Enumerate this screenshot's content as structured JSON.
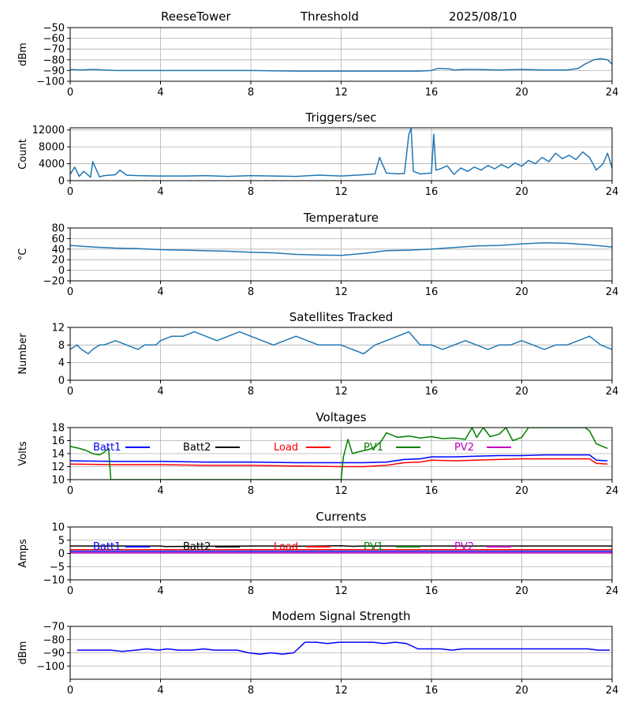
{
  "header": {
    "station": "ReeseTower",
    "label": "Threshold",
    "date": "2025/08/10"
  },
  "chart_data": [
    {
      "id": "threshold",
      "type": "line",
      "title": "",
      "xlabel": "",
      "ylabel": "dBm",
      "xlim": [
        0,
        24
      ],
      "ylim": [
        -100,
        -50
      ],
      "xticks": [
        0,
        4,
        8,
        12,
        16,
        20,
        24
      ],
      "yticks": [
        -100,
        -90,
        -80,
        -70,
        -60,
        -50
      ],
      "grid": true,
      "color": "#1f77b4",
      "x": [
        0,
        0.5,
        1,
        2,
        4,
        6,
        8,
        10,
        12,
        14,
        15.5,
        16,
        16.3,
        16.8,
        17,
        17.5,
        18,
        19,
        20,
        21,
        22,
        22.5,
        22.8,
        23,
        23.2,
        23.5,
        23.8,
        24
      ],
      "y": [
        -89,
        -89.5,
        -89,
        -90,
        -90,
        -90,
        -90,
        -90.5,
        -90.5,
        -90.5,
        -90.5,
        -90,
        -88,
        -88.5,
        -89.5,
        -89,
        -89,
        -89.5,
        -89,
        -89.5,
        -89.5,
        -88,
        -84,
        -82,
        -80,
        -79,
        -80,
        -84
      ]
    },
    {
      "id": "triggers",
      "type": "line",
      "title": "Triggers/sec",
      "xlabel": "",
      "ylabel": "Count",
      "xlim": [
        0,
        24
      ],
      "ylim": [
        0,
        12500
      ],
      "xticks": [
        0,
        4,
        8,
        12,
        16,
        20,
        24
      ],
      "yticks": [
        0,
        4000,
        8000,
        12000
      ],
      "grid": true,
      "color": "#1f77b4",
      "x": [
        0,
        0.2,
        0.4,
        0.6,
        0.9,
        1,
        1.3,
        1.5,
        2,
        2.2,
        2.5,
        3,
        4,
        5,
        6,
        7,
        8,
        9,
        10,
        11,
        12,
        13,
        13.5,
        13.7,
        14,
        14.5,
        14.8,
        15,
        15.1,
        15.2,
        15.5,
        16,
        16.1,
        16.2,
        16.4,
        16.7,
        17,
        17.3,
        17.6,
        17.9,
        18.2,
        18.5,
        18.8,
        19.1,
        19.4,
        19.7,
        20,
        20.3,
        20.6,
        20.9,
        21.2,
        21.5,
        21.8,
        22.1,
        22.4,
        22.7,
        23,
        23.3,
        23.6,
        23.8,
        24
      ],
      "y": [
        1500,
        3200,
        1000,
        2200,
        800,
        4500,
        900,
        1200,
        1400,
        2500,
        1300,
        1200,
        1100,
        1100,
        1200,
        1000,
        1200,
        1100,
        1000,
        1300,
        1100,
        1400,
        1600,
        5500,
        1800,
        1600,
        1700,
        11000,
        12400,
        2200,
        1600,
        1800,
        11000,
        2500,
        2800,
        3500,
        1500,
        3000,
        2200,
        3200,
        2500,
        3600,
        2800,
        3800,
        3000,
        4200,
        3400,
        4800,
        4000,
        5500,
        4500,
        6500,
        5200,
        6000,
        5000,
        6800,
        5500,
        2500,
        4000,
        6500,
        3000
      ]
    },
    {
      "id": "temperature",
      "type": "line",
      "title": "Temperature",
      "xlabel": "",
      "ylabel": "°C",
      "xlim": [
        0,
        24
      ],
      "ylim": [
        -20,
        80
      ],
      "xticks": [
        0,
        4,
        8,
        12,
        16,
        20,
        24
      ],
      "yticks": [
        -20,
        0,
        20,
        40,
        60,
        80
      ],
      "grid": true,
      "color": "#1f77b4",
      "x": [
        0,
        1,
        2,
        3,
        4,
        5,
        6,
        7,
        8,
        9,
        10,
        11,
        12,
        13,
        14,
        15,
        16,
        17,
        18,
        19,
        20,
        21,
        22,
        23,
        24
      ],
      "y": [
        47,
        44,
        42,
        41,
        39,
        38,
        37,
        36,
        34,
        33,
        30,
        29,
        28,
        32,
        37,
        38,
        40,
        43,
        46,
        47,
        50,
        52,
        51,
        48,
        44
      ]
    },
    {
      "id": "satellites",
      "type": "line",
      "title": "Satellites Tracked",
      "xlabel": "",
      "ylabel": "Number",
      "xlim": [
        0,
        24
      ],
      "ylim": [
        0,
        12
      ],
      "xticks": [
        0,
        4,
        8,
        12,
        16,
        20,
        24
      ],
      "yticks": [
        0,
        4,
        8,
        12
      ],
      "grid": true,
      "color": "#1f77b4",
      "x": [
        0,
        0.3,
        0.5,
        0.8,
        1,
        1.3,
        1.5,
        2,
        2.5,
        3,
        3.3,
        3.8,
        4,
        4.5,
        5,
        5.5,
        6,
        6.5,
        7,
        7.5,
        8,
        8.5,
        9,
        9.5,
        10,
        10.5,
        11,
        11.5,
        12,
        12.5,
        13,
        13.5,
        14,
        14.5,
        15,
        15.5,
        16,
        16.5,
        17,
        17.5,
        18,
        18.5,
        19,
        19.5,
        20,
        20.5,
        21,
        21.5,
        22,
        22.5,
        23,
        23.5,
        24
      ],
      "y": [
        7,
        8,
        7,
        6,
        7,
        8,
        8,
        9,
        8,
        7,
        8,
        8,
        9,
        10,
        10,
        11,
        10,
        9,
        10,
        11,
        10,
        9,
        8,
        9,
        10,
        9,
        8,
        8,
        8,
        7,
        6,
        8,
        9,
        10,
        11,
        8,
        8,
        7,
        8,
        9,
        8,
        7,
        8,
        8,
        9,
        8,
        7,
        8,
        8,
        9,
        10,
        8,
        7
      ]
    },
    {
      "id": "voltages",
      "type": "line",
      "title": "Voltages",
      "xlabel": "",
      "ylabel": "Volts",
      "xlim": [
        0,
        24
      ],
      "ylim": [
        10,
        18
      ],
      "xticks": [
        0,
        4,
        8,
        12,
        16,
        20,
        24
      ],
      "yticks": [
        10,
        12,
        14,
        16,
        18
      ],
      "grid": true,
      "legend": "top",
      "series": [
        {
          "name": "Batt1",
          "color": "#0000ff",
          "x": [
            0,
            2,
            4,
            6,
            8,
            10,
            12,
            13,
            14,
            14.8,
            15.5,
            16,
            17,
            18,
            19,
            20,
            21,
            22,
            23,
            23.3,
            23.8
          ],
          "y": [
            12.9,
            12.8,
            12.8,
            12.7,
            12.7,
            12.6,
            12.6,
            12.6,
            12.7,
            13.1,
            13.2,
            13.5,
            13.5,
            13.6,
            13.7,
            13.7,
            13.8,
            13.8,
            13.8,
            13.0,
            12.9
          ]
        },
        {
          "name": "Batt2",
          "color": "#000000",
          "x": [],
          "y": []
        },
        {
          "name": "Load",
          "color": "#ff0000",
          "x": [
            0,
            2,
            4,
            6,
            8,
            10,
            12,
            13,
            14,
            14.8,
            15.5,
            16,
            17,
            18,
            19,
            20,
            21,
            22,
            23,
            23.3,
            23.8
          ],
          "y": [
            12.4,
            12.3,
            12.3,
            12.2,
            12.2,
            12.1,
            12.0,
            12.0,
            12.2,
            12.6,
            12.7,
            13.0,
            12.9,
            13.0,
            13.1,
            13.2,
            13.2,
            13.2,
            13.2,
            12.5,
            12.4
          ]
        },
        {
          "name": "PV1",
          "color": "#008000",
          "x": [
            0,
            0.4,
            0.7,
            1,
            1.3,
            1.5,
            1.7,
            1.8,
            12,
            12.1,
            12.3,
            12.5,
            12.8,
            13.2,
            13.5,
            13.8,
            14,
            14.5,
            15,
            15.5,
            16,
            16.5,
            17,
            17.5,
            17.8,
            18,
            18.3,
            18.6,
            19,
            19.3,
            19.6,
            20,
            20.3,
            20.6,
            22.8,
            23,
            23.3,
            23.8
          ],
          "y": [
            15.1,
            14.8,
            14.5,
            14,
            13.8,
            14.2,
            14.8,
            10,
            10,
            13.5,
            16.2,
            14.0,
            14.3,
            14.6,
            15.0,
            16.0,
            17.2,
            16.5,
            16.7,
            16.4,
            16.6,
            16.3,
            16.4,
            16.2,
            18.0,
            16.5,
            18.0,
            16.6,
            17.0,
            18.0,
            16.0,
            16.5,
            18.0,
            18.0,
            18.0,
            17.5,
            15.5,
            14.8
          ]
        },
        {
          "name": "PV2",
          "color": "#bf00bf",
          "x": [],
          "y": []
        }
      ]
    },
    {
      "id": "currents",
      "type": "line",
      "title": "Currents",
      "xlabel": "",
      "ylabel": "Amps",
      "xlim": [
        0,
        24
      ],
      "ylim": [
        -10,
        10
      ],
      "xticks": [
        0,
        4,
        8,
        12,
        16,
        20,
        24
      ],
      "yticks": [
        -10,
        -5,
        0,
        5,
        10
      ],
      "grid": true,
      "legend": "top",
      "series": [
        {
          "name": "Batt1",
          "color": "#0000ff",
          "x": [
            0,
            24
          ],
          "y": [
            0.8,
            0.8
          ]
        },
        {
          "name": "Batt2",
          "color": "#000000",
          "x": [
            0,
            4,
            4.2,
            8,
            9,
            10,
            11,
            12,
            12.5,
            13,
            16,
            20,
            24
          ],
          "y": [
            2.8,
            2.8,
            2.6,
            2.8,
            2.8,
            2.7,
            2.8,
            2.9,
            2.7,
            2.8,
            2.8,
            2.8,
            2.8
          ]
        },
        {
          "name": "Load",
          "color": "#ff0000",
          "x": [
            0,
            24
          ],
          "y": [
            1.4,
            1.4
          ]
        },
        {
          "name": "PV1",
          "color": "#008000",
          "x": [],
          "y": []
        },
        {
          "name": "PV2",
          "color": "#bf00bf",
          "x": [
            0,
            24
          ],
          "y": [
            0.2,
            0.2
          ]
        }
      ]
    },
    {
      "id": "modem",
      "type": "line",
      "title": "Modem Signal Strength",
      "xlabel": "",
      "ylabel": "dBm",
      "xlim": [
        0,
        24
      ],
      "ylim": [
        -110,
        -70
      ],
      "xticks": [
        0,
        4,
        8,
        12,
        16,
        20,
        24
      ],
      "yticks": [
        -100,
        -90,
        -80,
        -70
      ],
      "grid": true,
      "color": "#0000ff",
      "x": [
        0.3,
        1.2,
        1.8,
        2.3,
        2.9,
        3.4,
        3.9,
        4.3,
        4.8,
        5.4,
        5.9,
        6.4,
        7.4,
        7.9,
        8.4,
        8.9,
        9.4,
        9.9,
        10.4,
        10.9,
        11.4,
        11.9,
        12.4,
        12.9,
        13.4,
        13.9,
        14.4,
        14.9,
        15.4,
        15.9,
        16.4,
        16.9,
        17.4,
        17.9,
        18.4,
        22.9,
        23.4,
        23.9
      ],
      "y": [
        -88,
        -88,
        -88,
        -89,
        -88,
        -87,
        -88,
        -87,
        -88,
        -88,
        -87,
        -88,
        -88,
        -90,
        -91,
        -90,
        -91,
        -90,
        -82,
        -82,
        -83,
        -82,
        -82,
        -82,
        -82,
        -83,
        -82,
        -83,
        -87,
        -87,
        -87,
        -88,
        -87,
        -87,
        -87,
        -87,
        -88,
        -88
      ]
    }
  ]
}
